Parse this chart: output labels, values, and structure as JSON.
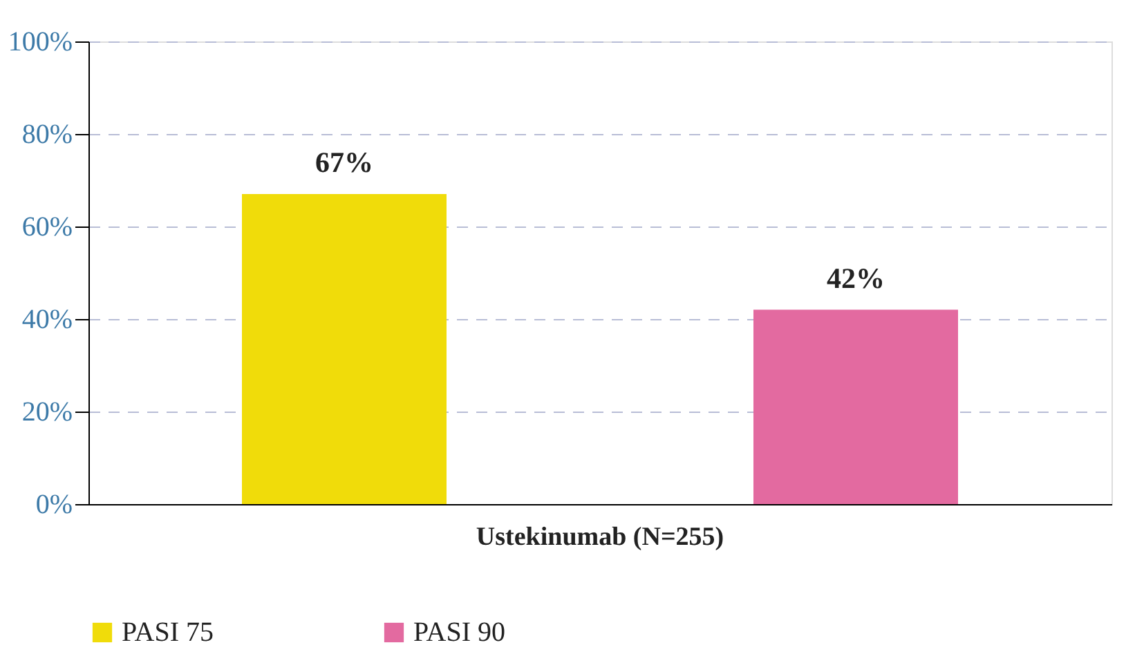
{
  "chart_data": {
    "type": "bar",
    "categories": [
      "Ustekinumab (N=255)"
    ],
    "series": [
      {
        "name": "PASI 75",
        "color": "#f0dc0a",
        "values": [
          67
        ],
        "value_labels": [
          "67%"
        ]
      },
      {
        "name": "PASI 90",
        "color": "#e36aa0",
        "values": [
          42
        ],
        "value_labels": [
          "42%"
        ]
      }
    ],
    "ylim": [
      0,
      100
    ],
    "yticks": [
      {
        "value": 0,
        "label": "0%"
      },
      {
        "value": 20,
        "label": "20%"
      },
      {
        "value": 40,
        "label": "40%"
      },
      {
        "value": 60,
        "label": "60%"
      },
      {
        "value": 80,
        "label": "80%"
      },
      {
        "value": 100,
        "label": "100%"
      }
    ],
    "grid": "y",
    "legend": "bottom"
  }
}
